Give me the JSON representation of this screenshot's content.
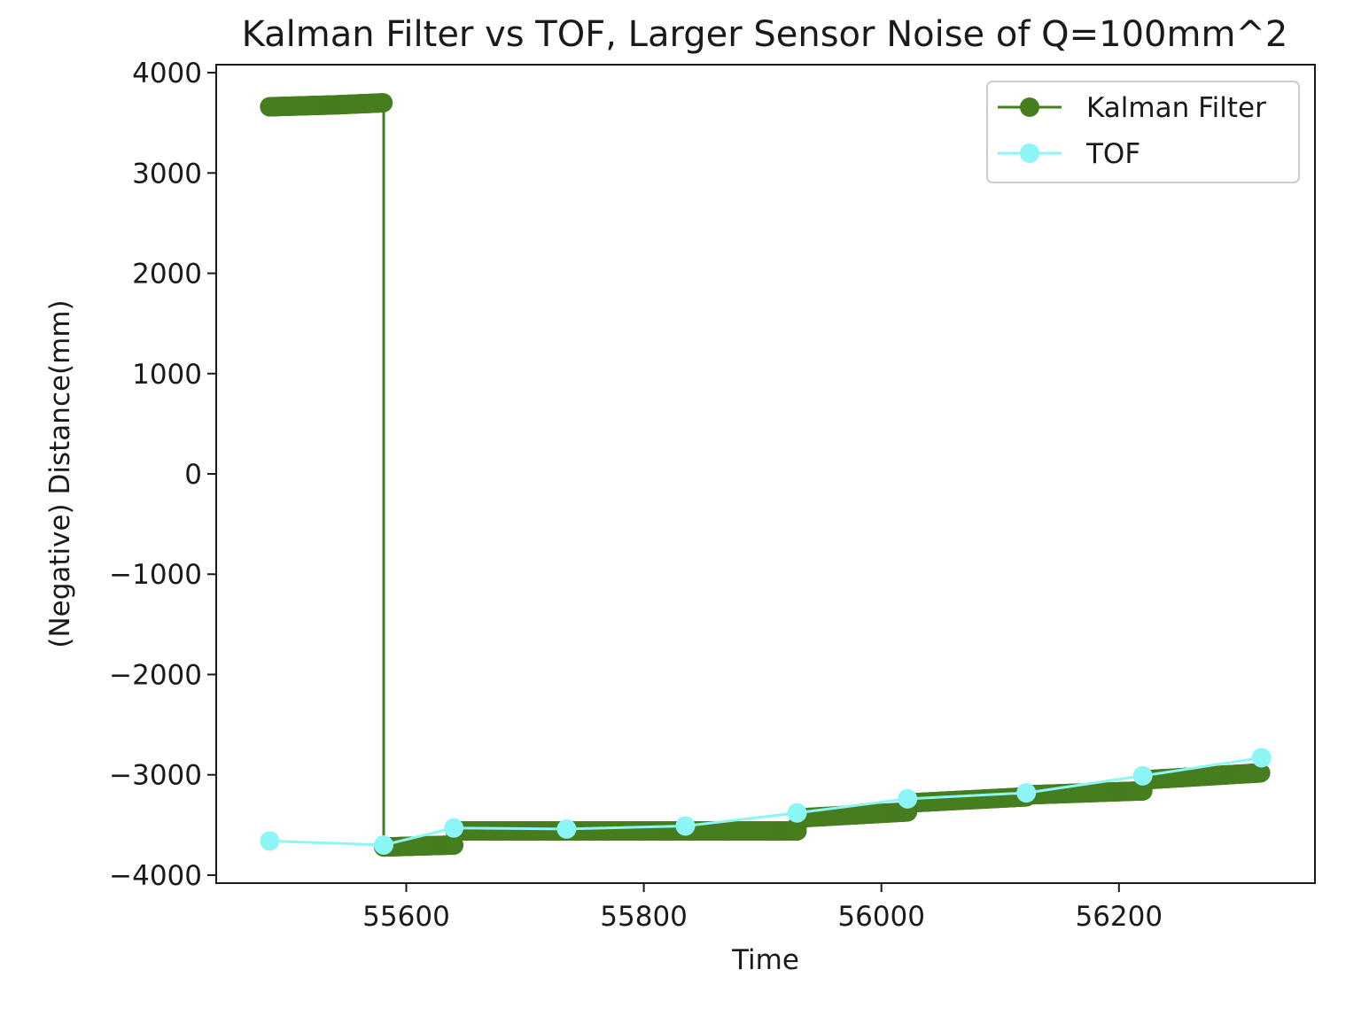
{
  "chart_data": {
    "type": "line",
    "title": "Kalman Filter vs TOF, Larger Sensor Noise of Q=100mm^2",
    "xlabel": "Time",
    "ylabel": "(Negative) Distance(mm)",
    "xlim": [
      55440,
      56365
    ],
    "ylim": [
      -4080,
      4080
    ],
    "xticks": [
      55600,
      55800,
      56000,
      56200
    ],
    "yticks": [
      4000,
      3000,
      2000,
      1000,
      0,
      -1000,
      -2000,
      -3000,
      -4000
    ],
    "xtick_labels": [
      "55600",
      "55800",
      "56000",
      "56200"
    ],
    "ytick_labels": [
      "4000",
      "3000",
      "2000",
      "1000",
      "0",
      "−1000",
      "−2000",
      "−3000",
      "−4000"
    ],
    "grid": false,
    "legend_position": "top-right",
    "series": [
      {
        "name": "Kalman Filter",
        "color": "#457d1f",
        "marker": "circle",
        "segments": [
          {
            "x": [
              55485,
              55542,
              55581
            ],
            "y": [
              3660,
              3680,
              3700
            ]
          },
          {
            "x": [
              55581,
              55581
            ],
            "y": [
              3700,
              -3720
            ]
          },
          {
            "x": [
              55581,
              55640,
              55641,
              55735,
              55835,
              55929,
              55931,
              56022,
              56024,
              56122,
              56124,
              56220,
              56222,
              56320
            ],
            "y": [
              -3720,
              -3700,
              -3560,
              -3560,
              -3560,
              -3560,
              -3430,
              -3370,
              -3280,
              -3220,
              -3200,
              -3160,
              -3050,
              -2980
            ]
          }
        ]
      },
      {
        "name": "TOF",
        "color": "#8cf5f5",
        "marker": "circle",
        "x": [
          55485,
          55581,
          55640,
          55735,
          55835,
          55929,
          56022,
          56122,
          56220,
          56320
        ],
        "y": [
          -3660,
          -3700,
          -3530,
          -3540,
          -3510,
          -3380,
          -3240,
          -3180,
          -3010,
          -2830
        ]
      }
    ]
  }
}
